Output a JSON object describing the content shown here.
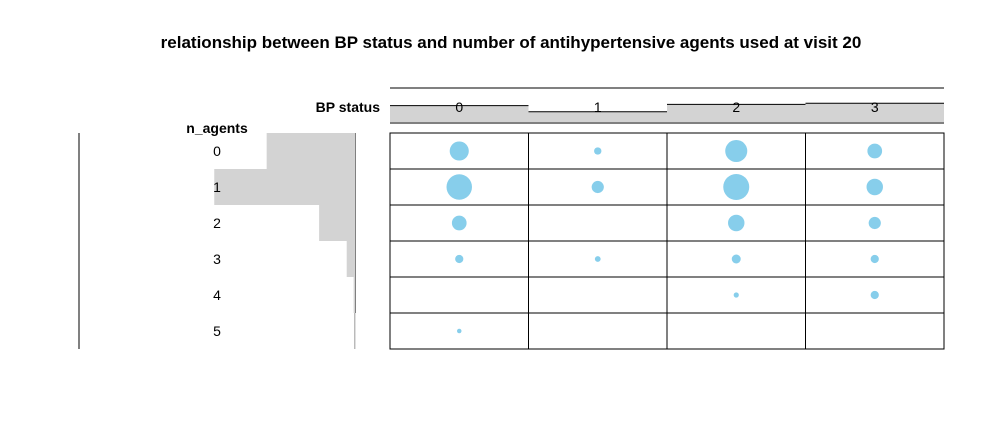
{
  "chart_data": {
    "type": "table",
    "title": "relationship between BP status and number of antihypertensive agents used at visit 20",
    "col_variable": "BP status",
    "row_variable": "n_agents",
    "columns": [
      "0",
      "1",
      "2",
      "3"
    ],
    "rows": [
      "0",
      "1",
      "2",
      "3",
      "4",
      "5"
    ],
    "column_totals": [
      0.48,
      0.3,
      0.52,
      0.55
    ],
    "row_totals": [
      0.32,
      0.51,
      0.13,
      0.03,
      0.005,
      0.001
    ],
    "cell_values": [
      [
        0.27,
        0.04,
        0.36,
        0.16
      ],
      [
        0.48,
        0.11,
        0.5,
        0.2
      ],
      [
        0.16,
        0,
        0.2,
        0.11
      ],
      [
        0.05,
        0.025,
        0.06,
        0.05
      ],
      [
        0,
        0,
        0.02,
        0.05
      ],
      [
        0.015,
        0,
        0,
        0
      ]
    ],
    "point_color": "#87ceeb",
    "bar_color": "#d3d3d3",
    "grid": true
  }
}
